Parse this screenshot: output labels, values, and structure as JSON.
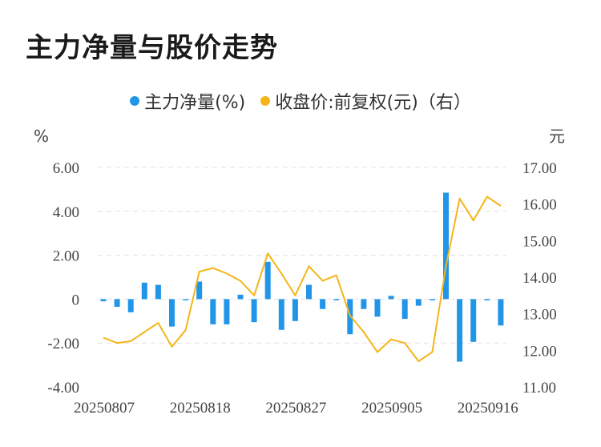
{
  "title": "主力净量与股价走势",
  "legend": {
    "series1": "主力净量(%)",
    "series2": "收盘价:前复权(元)（右）"
  },
  "colors": {
    "bars": "#2196e8",
    "line": "#f5b519",
    "grid": "#e0e0e0",
    "axis_text": "#444444"
  },
  "chart_data": {
    "type": "bar",
    "title": "主力净量与股价走势",
    "ylabel_left": "%",
    "ylabel_right": "元",
    "ylim_left": [
      -4,
      6
    ],
    "ylim_right": [
      11,
      17
    ],
    "yticks_left": [
      "6.00",
      "4.00",
      "2.00",
      "0",
      "-2.00",
      "-4.00"
    ],
    "yticks_right": [
      "17.00",
      "16.00",
      "15.00",
      "14.00",
      "13.00",
      "12.00",
      "11.00"
    ],
    "x_tick_labels": [
      "20250807",
      "20250818",
      "20250827",
      "20250905",
      "20250916"
    ],
    "x_tick_indices": [
      0,
      7,
      14,
      21,
      28
    ],
    "grid": true,
    "legend_position": "top-center",
    "series": [
      {
        "name": "主力净量(%)",
        "type": "bar",
        "axis": "left",
        "values": [
          -0.1,
          -0.35,
          -0.6,
          0.75,
          0.65,
          -1.25,
          0.0,
          0.8,
          -1.15,
          -1.15,
          0.2,
          -1.05,
          1.7,
          -1.4,
          -1.0,
          0.65,
          -0.45,
          -0.05,
          -1.6,
          -0.45,
          -0.8,
          0.15,
          -0.9,
          -0.3,
          0.0,
          4.85,
          -2.85,
          -1.95,
          -0.05,
          -1.2
        ]
      },
      {
        "name": "收盘价:前复权(元)（右）",
        "type": "line",
        "axis": "right",
        "values": [
          12.35,
          12.2,
          12.25,
          12.5,
          12.75,
          12.1,
          12.55,
          14.15,
          14.25,
          14.1,
          13.9,
          13.5,
          14.65,
          14.1,
          13.5,
          14.3,
          13.9,
          14.05,
          12.95,
          12.5,
          11.95,
          12.3,
          12.2,
          11.7,
          11.95,
          14.3,
          16.15,
          15.55,
          16.2,
          15.95
        ]
      }
    ]
  }
}
